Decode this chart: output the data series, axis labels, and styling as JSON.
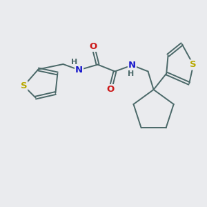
{
  "background_color": "#eaebee",
  "bond_color": "#4a6868",
  "bond_width": 1.4,
  "dbo": 0.055,
  "S_color": "#b8a800",
  "N_color": "#1818cc",
  "O_color": "#cc1818",
  "H_color": "#4a6868",
  "font_size_atom": 9.5,
  "font_size_H": 8.0,
  "figsize": [
    3.0,
    3.0
  ],
  "dpi": 100,
  "xlim": [
    0,
    10
  ],
  "ylim": [
    0,
    10
  ]
}
